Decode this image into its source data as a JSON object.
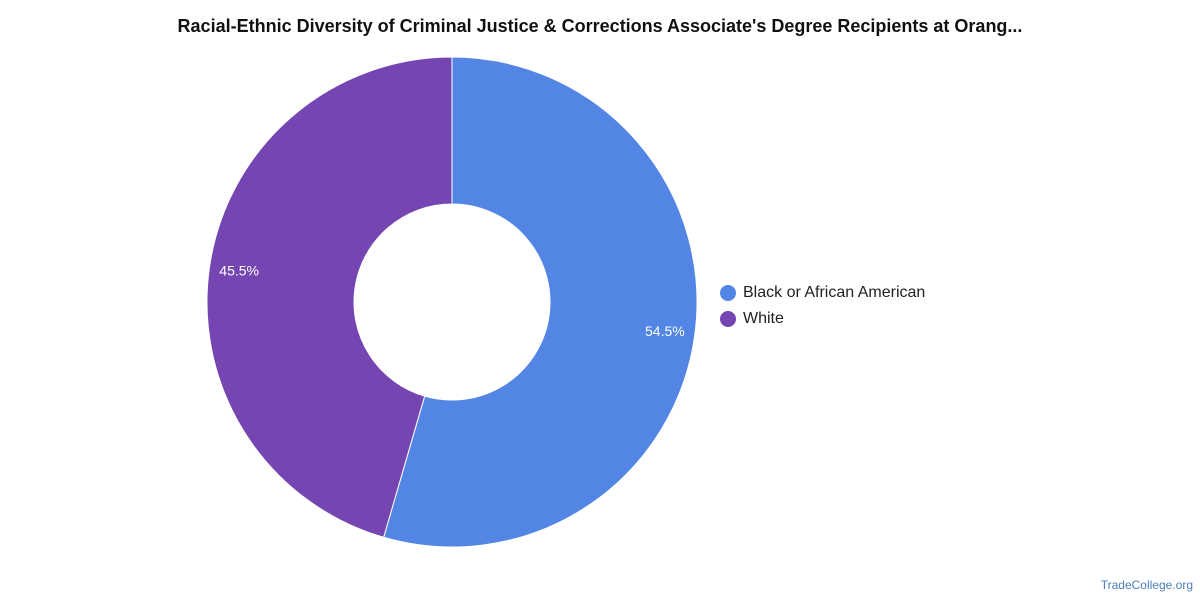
{
  "chart_data": {
    "type": "pie",
    "title": "Racial-Ethnic Diversity of Criminal Justice & Corrections Associate's Degree Recipients at Orang...",
    "slices": [
      {
        "name": "Black or African American",
        "value": 54.5,
        "label": "54.5%",
        "color": "#5386e4"
      },
      {
        "name": "White",
        "value": 45.5,
        "label": "45.5%",
        "color": "#7546b1"
      }
    ],
    "legend_position": "right"
  },
  "footer": {
    "source": "TradeCollege.org"
  }
}
